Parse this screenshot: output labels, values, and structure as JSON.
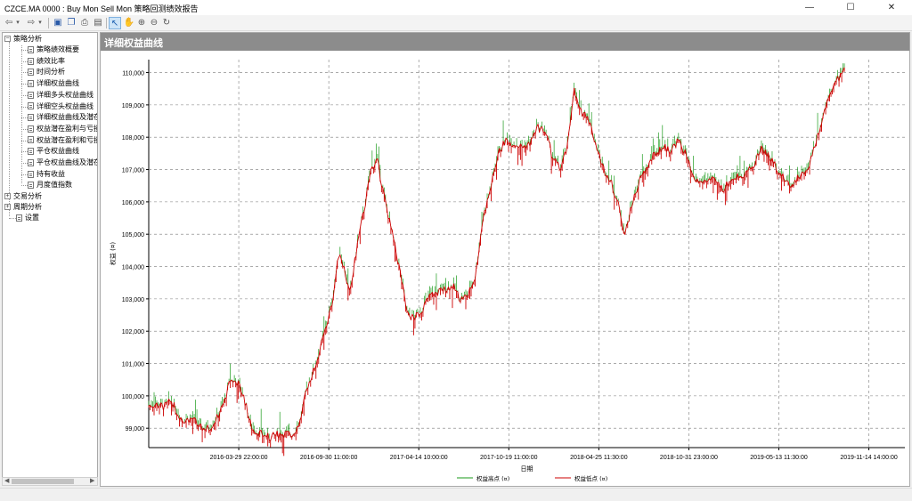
{
  "window": {
    "title": "CZCE.MA 0000 : Buy Mon Sell Mon 策略回测绩效报告",
    "minimize": "—",
    "maximize": "☐",
    "close": "✕"
  },
  "toolbar": {
    "icons": [
      "back-arrow-icon",
      "dropdown-icon",
      "forward-arrow-icon",
      "dropdown-icon",
      "save-icon",
      "copy-icon",
      "print-icon",
      "export-icon",
      "pointer-icon",
      "hand-icon",
      "zoom-in-icon",
      "zoom-out-icon",
      "refresh-icon"
    ],
    "active": "pointer-icon"
  },
  "tree": {
    "strategy_analysis": "策略分析",
    "items": [
      "策略绩效概要",
      "绩效比率",
      "时间分析",
      "详细权益曲线",
      "详细多头权益曲线",
      "详细空头权益曲线",
      "详细权益曲线及潜在",
      "权益潜在盈利与亏损",
      "权益潜在盈利和亏损",
      "平仓权益曲线",
      "平仓权益曲线及潜在",
      "持有收益",
      "月度值指数"
    ],
    "trade_analysis": "交易分析",
    "period_analysis": "周期分析",
    "settings": "设置"
  },
  "panel": {
    "header": "详细权益曲线"
  },
  "chart_data": {
    "type": "line",
    "title": "",
    "xlabel": "日期",
    "ylabel": "权益 (¤)",
    "ylim": [
      98400,
      110400
    ],
    "yticks": [
      99000,
      100000,
      101000,
      102000,
      103000,
      104000,
      105000,
      106000,
      107000,
      108000,
      109000,
      110000
    ],
    "ytick_labels": [
      "99,000",
      "100,000",
      "101,000",
      "102,000",
      "103,000",
      "104,000",
      "105,000",
      "106,000",
      "107,000",
      "108,000",
      "109,000",
      "110,000"
    ],
    "xticks": [
      "2016-03-29 22:00:00",
      "2016-09-30 11:00:00",
      "2017-04-14 10:00:00",
      "2017-10-19 11:00:00",
      "2018-04-25 11:30:00",
      "2018-10-31 23:00:00",
      "2019-05-13 11:30:00",
      "2019-11-14 14:00:00"
    ],
    "grid": true,
    "legend_position": "bottom-center",
    "series": [
      {
        "name": "权益高点 (¤)",
        "color": "#1a9a1a"
      },
      {
        "name": "权益低点 (¤)",
        "color": "#cc0000"
      }
    ],
    "equity_keypoints": [
      [
        0.0,
        99700
      ],
      [
        0.01,
        99750
      ],
      [
        0.02,
        99650
      ],
      [
        0.03,
        99850
      ],
      [
        0.036,
        99550
      ],
      [
        0.045,
        99250
      ],
      [
        0.058,
        99300
      ],
      [
        0.068,
        99000
      ],
      [
        0.08,
        99000
      ],
      [
        0.09,
        99300
      ],
      [
        0.1,
        99800
      ],
      [
        0.108,
        100500
      ],
      [
        0.118,
        100400
      ],
      [
        0.126,
        99950
      ],
      [
        0.136,
        99000
      ],
      [
        0.15,
        98800
      ],
      [
        0.16,
        98700
      ],
      [
        0.175,
        98850
      ],
      [
        0.19,
        98800
      ],
      [
        0.2,
        99200
      ],
      [
        0.21,
        100300
      ],
      [
        0.22,
        100900
      ],
      [
        0.232,
        101900
      ],
      [
        0.242,
        102800
      ],
      [
        0.252,
        104500
      ],
      [
        0.258,
        104000
      ],
      [
        0.266,
        103100
      ],
      [
        0.276,
        104700
      ],
      [
        0.286,
        105900
      ],
      [
        0.294,
        107000
      ],
      [
        0.302,
        107300
      ],
      [
        0.312,
        106100
      ],
      [
        0.322,
        105000
      ],
      [
        0.332,
        103900
      ],
      [
        0.342,
        102500
      ],
      [
        0.352,
        102400
      ],
      [
        0.362,
        102700
      ],
      [
        0.372,
        103100
      ],
      [
        0.382,
        103200
      ],
      [
        0.392,
        103300
      ],
      [
        0.402,
        103400
      ],
      [
        0.412,
        103000
      ],
      [
        0.422,
        103100
      ],
      [
        0.432,
        103700
      ],
      [
        0.442,
        105500
      ],
      [
        0.452,
        106400
      ],
      [
        0.462,
        107500
      ],
      [
        0.472,
        107900
      ],
      [
        0.484,
        107800
      ],
      [
        0.494,
        107700
      ],
      [
        0.504,
        107800
      ],
      [
        0.514,
        108300
      ],
      [
        0.524,
        108200
      ],
      [
        0.534,
        107400
      ],
      [
        0.544,
        107000
      ],
      [
        0.554,
        107700
      ],
      [
        0.562,
        109500
      ],
      [
        0.57,
        108800
      ],
      [
        0.58,
        108700
      ],
      [
        0.59,
        107900
      ],
      [
        0.6,
        107100
      ],
      [
        0.61,
        106700
      ],
      [
        0.62,
        106000
      ],
      [
        0.63,
        105000
      ],
      [
        0.64,
        106000
      ],
      [
        0.65,
        106700
      ],
      [
        0.66,
        107100
      ],
      [
        0.67,
        107500
      ],
      [
        0.68,
        107700
      ],
      [
        0.69,
        107600
      ],
      [
        0.7,
        107900
      ],
      [
        0.71,
        107500
      ],
      [
        0.72,
        106700
      ],
      [
        0.73,
        106600
      ],
      [
        0.74,
        106700
      ],
      [
        0.75,
        106600
      ],
      [
        0.76,
        106400
      ],
      [
        0.77,
        106700
      ],
      [
        0.78,
        106800
      ],
      [
        0.79,
        106900
      ],
      [
        0.8,
        107100
      ],
      [
        0.81,
        107700
      ],
      [
        0.82,
        107400
      ],
      [
        0.83,
        107100
      ],
      [
        0.84,
        106700
      ],
      [
        0.85,
        106500
      ],
      [
        0.86,
        106800
      ],
      [
        0.87,
        106900
      ],
      [
        0.88,
        107700
      ],
      [
        0.89,
        108500
      ],
      [
        0.9,
        109400
      ],
      [
        0.912,
        109800
      ],
      [
        0.92,
        110200
      ]
    ]
  }
}
